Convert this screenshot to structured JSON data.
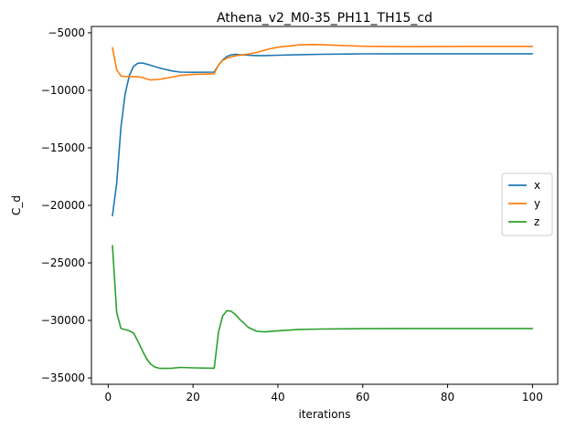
{
  "chart_data": {
    "type": "line",
    "title": "Athena_v2_M0-35_PH11_TH15_cd",
    "xlabel": "iterations",
    "ylabel": "C_d",
    "xlim": [
      -3.95,
      105.95
    ],
    "ylim": [
      -35550,
      -4450
    ],
    "xticks": [
      0,
      20,
      40,
      60,
      80,
      100
    ],
    "yticks": [
      -35000,
      -30000,
      -25000,
      -20000,
      -15000,
      -10000,
      -5000
    ],
    "grid": false,
    "legend_position": "center-right",
    "series": [
      {
        "name": "x",
        "color": "#1f77b4",
        "x": [
          1,
          2,
          3,
          4,
          5,
          6,
          7,
          8,
          9,
          10,
          12,
          15,
          17,
          20,
          25,
          26,
          27,
          28,
          29,
          30,
          31,
          33,
          35,
          37,
          40,
          45,
          50,
          60,
          70,
          80,
          90,
          100
        ],
        "y": [
          -20900,
          -18100,
          -13200,
          -10300,
          -8700,
          -7900,
          -7650,
          -7620,
          -7720,
          -7820,
          -8050,
          -8310,
          -8420,
          -8430,
          -8420,
          -7800,
          -7350,
          -7050,
          -6920,
          -6880,
          -6900,
          -6950,
          -6980,
          -6980,
          -6950,
          -6900,
          -6870,
          -6830,
          -6820,
          -6820,
          -6820,
          -6820
        ]
      },
      {
        "name": "y",
        "color": "#ff7f0e",
        "x": [
          1,
          2,
          3,
          4,
          5,
          6,
          7,
          8,
          9,
          10,
          12,
          15,
          17,
          20,
          25,
          26,
          27,
          28,
          30,
          33,
          35,
          38,
          40,
          45,
          48,
          50,
          55,
          60,
          70,
          80,
          90,
          100
        ],
        "y": [
          -6300,
          -8200,
          -8750,
          -8800,
          -8820,
          -8820,
          -8820,
          -8880,
          -9000,
          -9100,
          -9050,
          -8850,
          -8700,
          -8620,
          -8560,
          -7800,
          -7400,
          -7200,
          -7000,
          -6850,
          -6700,
          -6400,
          -6250,
          -6050,
          -6020,
          -6030,
          -6100,
          -6170,
          -6200,
          -6190,
          -6180,
          -6180
        ]
      },
      {
        "name": "z",
        "color": "#2ca02c",
        "x": [
          1,
          2,
          3,
          4,
          5,
          6,
          7,
          8,
          9,
          10,
          11,
          12,
          13,
          14,
          15,
          17,
          20,
          25,
          26,
          27,
          28,
          29,
          30,
          31,
          33,
          35,
          37,
          40,
          45,
          50,
          60,
          70,
          80,
          90,
          100
        ],
        "y": [
          -23500,
          -29300,
          -30700,
          -30800,
          -30900,
          -31100,
          -31800,
          -32600,
          -33300,
          -33800,
          -34050,
          -34150,
          -34170,
          -34170,
          -34150,
          -34080,
          -34120,
          -34150,
          -31000,
          -29600,
          -29150,
          -29200,
          -29500,
          -29900,
          -30600,
          -30950,
          -31000,
          -30900,
          -30780,
          -30750,
          -30720,
          -30700,
          -30700,
          -30700,
          -30700
        ]
      }
    ]
  }
}
